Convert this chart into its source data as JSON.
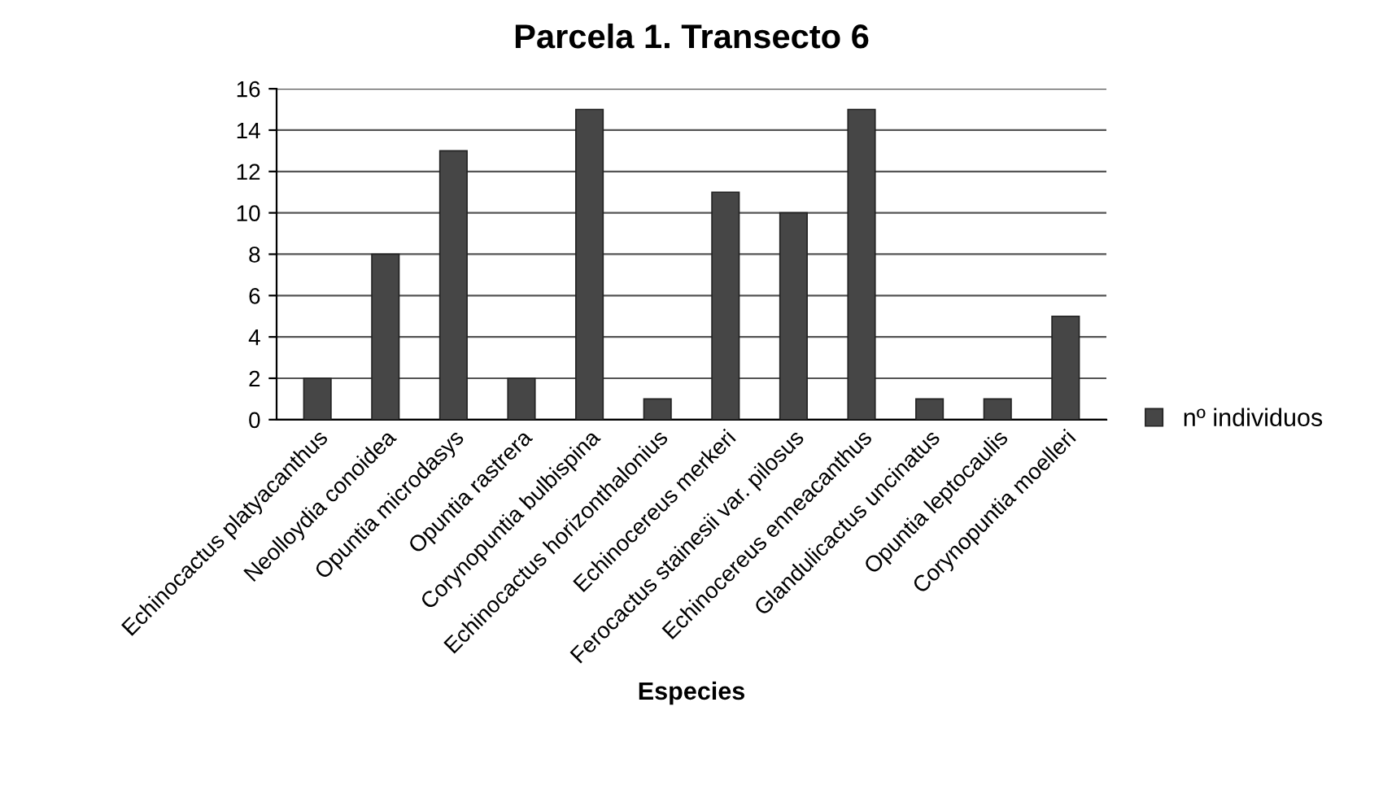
{
  "chart_data": {
    "type": "bar",
    "title": "Parcela 1. Transecto 6",
    "xlabel": "Especies",
    "categories": [
      "Echinocactus platyacanthus",
      "Neolloydia conoidea",
      "Opuntia microdasys",
      "Opuntia rastrera",
      "Corynopuntia bulbispina",
      "Echinocactus horizonthalonius",
      "Echinocereus merkeri",
      "Ferocactus stainesii var. pilosus",
      "Echinocereus enneacanthus",
      "Glandulicactus uncinatus",
      "Opuntia leptocaulis",
      "Corynopuntia moelleri"
    ],
    "series": [
      {
        "name": "nº individuos",
        "color": "#464646",
        "values": [
          2,
          8,
          13,
          2,
          15,
          1,
          11,
          10,
          15,
          1,
          1,
          5
        ]
      }
    ],
    "ylim": [
      0,
      16
    ],
    "yticks": [
      0,
      2,
      4,
      6,
      8,
      10,
      12,
      14,
      16
    ],
    "grid": "y",
    "legend": "right"
  }
}
